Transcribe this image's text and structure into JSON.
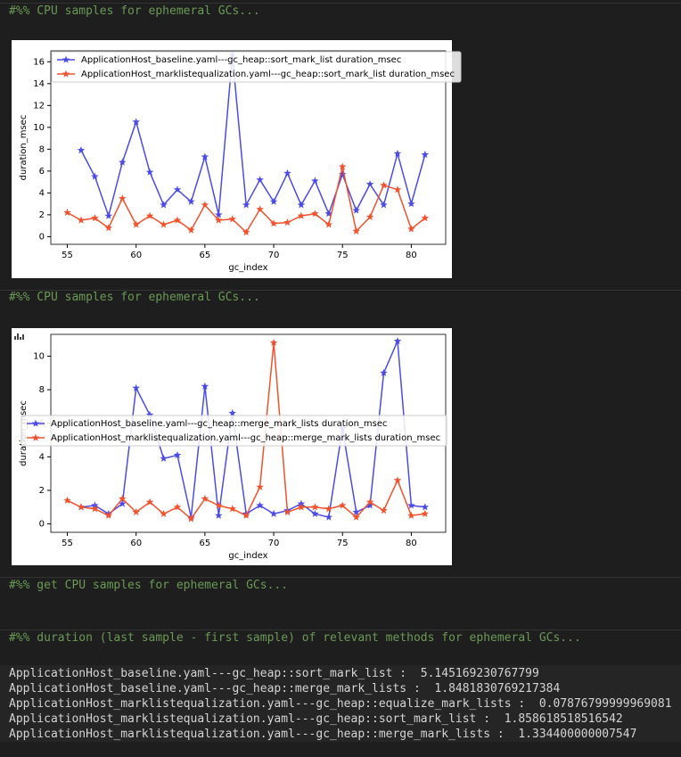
{
  "cells": [
    {
      "source": "#%% CPU samples for ephemeral GCs..."
    },
    {
      "source": "#%% CPU samples for ephemeral GCs..."
    },
    {
      "source": "#%% get CPU samples for ephemeral GCs..."
    },
    {
      "source": "#%% duration (last sample - first sample) of relevant methods for ephemeral GCs..."
    }
  ],
  "chart_data": [
    {
      "type": "line",
      "xlabel": "gc_index",
      "ylabel": "duration_msec",
      "legend": "upper left",
      "xlim": [
        53.8,
        82.5
      ],
      "ylim": [
        -0.7,
        17
      ],
      "xticks": [
        55,
        60,
        65,
        70,
        75,
        80
      ],
      "yticks": [
        0,
        2,
        4,
        6,
        8,
        10,
        12,
        14,
        16
      ],
      "series": [
        {
          "name": "ApplicationHost_baseline.yaml---gc_heap::sort_mark_list duration_msec",
          "color": "#4b4be6",
          "x": [
            56,
            57,
            58,
            59,
            60,
            61,
            62,
            63,
            64,
            65,
            66,
            67,
            68,
            69,
            70,
            71,
            72,
            73,
            74,
            75,
            76,
            77,
            78,
            79,
            80,
            81
          ],
          "values": [
            7.9,
            5.5,
            1.9,
            6.8,
            10.5,
            5.9,
            2.9,
            4.3,
            3.2,
            7.3,
            2.0,
            16.6,
            2.9,
            5.2,
            3.2,
            5.8,
            2.9,
            5.1,
            2.1,
            5.7,
            2.4,
            4.8,
            2.9,
            7.6,
            3.0,
            7.5
          ]
        },
        {
          "name": "ApplicationHost_marklistequalization.yaml---gc_heap::sort_mark_list duration_msec",
          "color": "#f0522e",
          "x": [
            55,
            56,
            57,
            58,
            59,
            60,
            61,
            62,
            63,
            64,
            65,
            66,
            67,
            68,
            69,
            70,
            71,
            72,
            73,
            74,
            75,
            76,
            77,
            78,
            79,
            80,
            81
          ],
          "values": [
            2.2,
            1.5,
            1.7,
            0.8,
            3.5,
            1.1,
            1.9,
            1.1,
            1.5,
            0.6,
            2.9,
            1.5,
            1.6,
            0.4,
            2.5,
            1.2,
            1.3,
            1.9,
            2.1,
            1.1,
            6.4,
            0.5,
            1.8,
            4.7,
            4.3,
            0.7,
            1.7
          ]
        }
      ]
    },
    {
      "type": "line",
      "xlabel": "gc_index",
      "ylabel": "duration_msec",
      "legend": "center left",
      "xlim": [
        53.8,
        82.5
      ],
      "ylim": [
        -0.5,
        11.3
      ],
      "xticks": [
        55,
        60,
        65,
        70,
        75,
        80
      ],
      "yticks": [
        0,
        2,
        4,
        6,
        8,
        10
      ],
      "series": [
        {
          "name": "ApplicationHost_baseline.yaml---gc_heap::merge_mark_lists duration_msec",
          "color": "#4b4be6",
          "x": [
            56,
            57,
            58,
            59,
            60,
            61,
            62,
            63,
            64,
            65,
            66,
            67,
            68,
            69,
            70,
            71,
            72,
            73,
            74,
            75,
            76,
            77,
            78,
            79,
            80,
            81
          ],
          "values": [
            1.0,
            1.1,
            0.6,
            1.2,
            8.1,
            6.5,
            3.9,
            4.1,
            0.4,
            8.2,
            0.5,
            6.6,
            0.6,
            1.1,
            0.6,
            0.8,
            1.2,
            0.6,
            0.4,
            5.7,
            0.7,
            1.1,
            9.0,
            10.9,
            1.1,
            1.0
          ]
        },
        {
          "name": "ApplicationHost_marklistequalization.yaml---gc_heap::merge_mark_lists duration_msec",
          "color": "#f0522e",
          "x": [
            55,
            56,
            57,
            58,
            59,
            60,
            61,
            62,
            63,
            64,
            65,
            66,
            67,
            68,
            69,
            70,
            71,
            72,
            73,
            74,
            75,
            76,
            77,
            78,
            79,
            80,
            81
          ],
          "values": [
            1.4,
            1.0,
            0.9,
            0.5,
            1.5,
            0.7,
            1.3,
            0.6,
            1.0,
            0.3,
            1.5,
            1.1,
            0.9,
            0.5,
            2.2,
            10.8,
            0.7,
            1.0,
            1.0,
            0.9,
            1.1,
            0.4,
            1.3,
            0.8,
            2.6,
            0.5,
            0.6
          ]
        }
      ]
    }
  ],
  "output_lines": [
    "ApplicationHost_baseline.yaml---gc_heap::sort_mark_list :  5.145169230767799",
    "ApplicationHost_baseline.yaml---gc_heap::merge_mark_lists :  1.8481830769217384",
    "ApplicationHost_marklistequalization.yaml---gc_heap::equalize_mark_lists :  0.07876799999969081",
    "ApplicationHost_marklistequalization.yaml---gc_heap::sort_mark_list :  1.858618518516542",
    "ApplicationHost_marklistequalization.yaml---gc_heap::merge_mark_lists :  1.334400000007547"
  ]
}
